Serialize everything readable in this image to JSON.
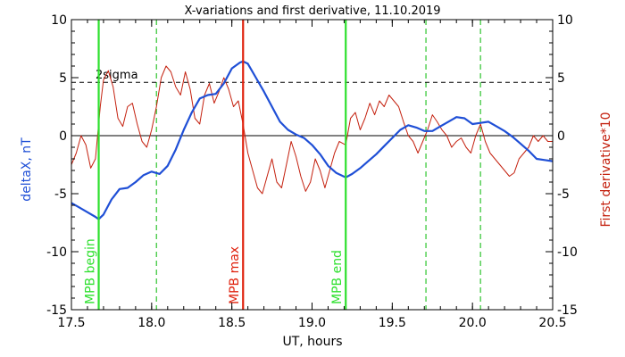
{
  "chart_data": {
    "type": "line",
    "title": "X-variations and first derivative, 11.10.2019",
    "xlabel": "UT, hours",
    "ylabel_left": "deltaX, nT",
    "ylabel_right": "First derivative*10",
    "xlim": [
      17.5,
      20.5
    ],
    "ylim": [
      -15,
      10
    ],
    "x_ticks": [
      17.5,
      18.0,
      18.5,
      19.0,
      19.5,
      20.0,
      20.5
    ],
    "x_tick_labels": [
      "17.5",
      "18.0",
      "18.5",
      "19.0",
      "19.5",
      "20.0",
      "20.5"
    ],
    "y_ticks": [
      -15,
      -10,
      -5,
      0,
      5,
      10
    ],
    "y_tick_labels": [
      "-15",
      "-10",
      "-5",
      "0",
      "5",
      "10"
    ],
    "grid": false,
    "colors": {
      "deltaX": "#1f4fd6",
      "derivative": "#c4210f",
      "mpb_begin_end": "#2ee02e",
      "mpb_max": "#e0220e",
      "dashed_green": "#2ec42e",
      "axis": "#000000"
    },
    "reference_lines": {
      "zero": 0,
      "two_sigma": 4.6,
      "two_sigma_label": "2sigma"
    },
    "markers": [
      {
        "x": 17.67,
        "label": "MPB begin",
        "color": "#2ee02e",
        "style": "solid"
      },
      {
        "x": 18.57,
        "label": "MPB max",
        "color": "#e0220e",
        "style": "solid"
      },
      {
        "x": 19.21,
        "label": "MPB end",
        "color": "#2ee02e",
        "style": "solid"
      }
    ],
    "dashed_markers": [
      18.03,
      19.71,
      20.05
    ],
    "series": [
      {
        "name": "deltaX",
        "x": [
          17.5,
          17.55,
          17.6,
          17.65,
          17.67,
          17.7,
          17.75,
          17.8,
          17.85,
          17.9,
          17.95,
          18.0,
          18.05,
          18.1,
          18.15,
          18.2,
          18.25,
          18.3,
          18.35,
          18.4,
          18.45,
          18.5,
          18.55,
          18.57,
          18.6,
          18.65,
          18.7,
          18.75,
          18.8,
          18.85,
          18.9,
          18.95,
          19.0,
          19.05,
          19.1,
          19.15,
          19.21,
          19.25,
          19.3,
          19.35,
          19.4,
          19.45,
          19.5,
          19.55,
          19.6,
          19.65,
          19.7,
          19.75,
          19.8,
          19.85,
          19.9,
          19.95,
          20.0,
          20.05,
          20.1,
          20.15,
          20.2,
          20.25,
          20.3,
          20.35,
          20.4,
          20.45,
          20.5
        ],
        "y": [
          -5.8,
          -6.2,
          -6.6,
          -7.0,
          -7.2,
          -6.8,
          -5.5,
          -4.6,
          -4.5,
          -4.0,
          -3.4,
          -3.1,
          -3.3,
          -2.6,
          -1.2,
          0.5,
          2.0,
          3.2,
          3.5,
          3.6,
          4.5,
          5.8,
          6.3,
          6.4,
          6.2,
          5.0,
          3.8,
          2.5,
          1.2,
          0.5,
          0.1,
          -0.2,
          -0.8,
          -1.6,
          -2.6,
          -3.2,
          -3.6,
          -3.3,
          -2.8,
          -2.2,
          -1.6,
          -0.9,
          -0.2,
          0.5,
          0.9,
          0.7,
          0.4,
          0.4,
          0.8,
          1.2,
          1.6,
          1.5,
          1.0,
          1.1,
          1.2,
          0.8,
          0.4,
          -0.1,
          -0.7,
          -1.3,
          -2.0,
          -2.1,
          -2.2
        ]
      },
      {
        "name": "First derivative*10",
        "x": [
          17.5,
          17.53,
          17.56,
          17.59,
          17.62,
          17.65,
          17.68,
          17.7,
          17.73,
          17.76,
          17.79,
          17.82,
          17.85,
          17.88,
          17.91,
          17.94,
          17.97,
          18.0,
          18.03,
          18.06,
          18.09,
          18.12,
          18.15,
          18.18,
          18.21,
          18.24,
          18.27,
          18.3,
          18.33,
          18.36,
          18.39,
          18.42,
          18.45,
          18.48,
          18.51,
          18.54,
          18.57,
          18.6,
          18.63,
          18.66,
          18.69,
          18.72,
          18.75,
          18.78,
          18.81,
          18.84,
          18.87,
          18.9,
          18.93,
          18.96,
          18.99,
          19.02,
          19.05,
          19.08,
          19.11,
          19.14,
          19.17,
          19.21,
          19.24,
          19.27,
          19.3,
          19.33,
          19.36,
          19.39,
          19.42,
          19.45,
          19.48,
          19.51,
          19.54,
          19.57,
          19.6,
          19.63,
          19.66,
          19.69,
          19.72,
          19.75,
          19.78,
          19.81,
          19.84,
          19.87,
          19.9,
          19.93,
          19.96,
          19.99,
          20.02,
          20.05,
          20.08,
          20.11,
          20.14,
          20.17,
          20.2,
          20.23,
          20.26,
          20.29,
          20.32,
          20.35,
          20.38,
          20.41,
          20.44,
          20.47,
          20.5
        ],
        "y": [
          -2.5,
          -1.5,
          0.0,
          -0.8,
          -2.8,
          -2.0,
          2.5,
          4.8,
          5.6,
          4.2,
          1.5,
          0.8,
          2.5,
          2.8,
          1.0,
          -0.5,
          -1.0,
          0.5,
          2.5,
          5.0,
          6.0,
          5.5,
          4.2,
          3.5,
          5.5,
          4.0,
          1.5,
          1.0,
          3.5,
          4.5,
          2.8,
          3.8,
          5.0,
          4.0,
          2.5,
          3.0,
          1.0,
          -1.5,
          -3.0,
          -4.5,
          -5.0,
          -3.5,
          -2.0,
          -4.0,
          -4.5,
          -2.5,
          -0.5,
          -1.8,
          -3.5,
          -4.8,
          -4.0,
          -2.0,
          -3.0,
          -4.5,
          -3.0,
          -1.5,
          -0.5,
          -0.8,
          1.5,
          2.0,
          0.5,
          1.5,
          2.8,
          1.8,
          3.0,
          2.5,
          3.5,
          3.0,
          2.5,
          1.2,
          0.0,
          -0.5,
          -1.5,
          -0.5,
          0.5,
          1.8,
          1.2,
          0.5,
          0.0,
          -1.0,
          -0.5,
          -0.2,
          -1.0,
          -1.5,
          0.0,
          1.0,
          -0.5,
          -1.5,
          -2.0,
          -2.5,
          -3.0,
          -3.5,
          -3.2,
          -2.0,
          -1.5,
          -1.0,
          0.0,
          -0.5,
          0.0,
          -0.5,
          -0.5
        ]
      }
    ]
  }
}
